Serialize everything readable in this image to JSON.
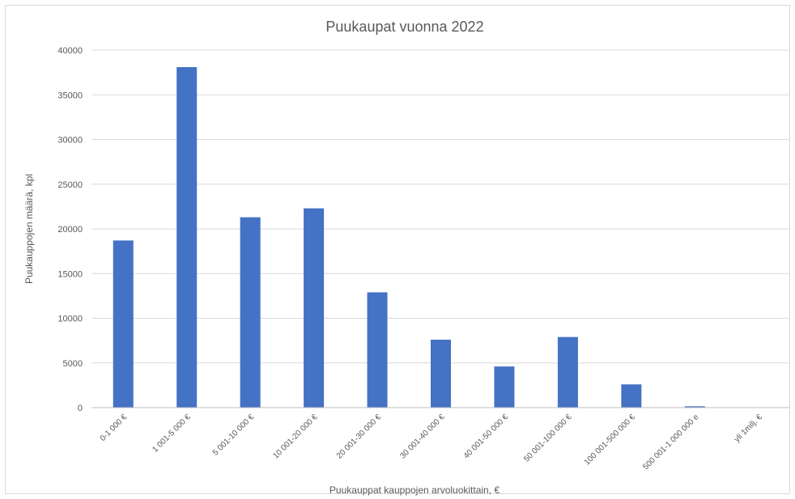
{
  "chart_data": {
    "type": "bar",
    "title": "Puukaupat vuonna 2022",
    "xlabel": "Puukauppat kauppojen arvoluokittain, €",
    "ylabel": "Puukauppojen määrä, kpl",
    "ylim": [
      0,
      40000
    ],
    "yticks": [
      0,
      5000,
      10000,
      15000,
      20000,
      25000,
      30000,
      35000,
      40000
    ],
    "grid": true,
    "bar_color": "#4472C4",
    "categories": [
      "0-1 000 €",
      "1 001-5 000 €",
      "5 001-10 000 €",
      "10 001-20 000 €",
      "20 001-30 000 €",
      "30 001-40 000 €",
      "40 001-50 000 €",
      "50 001-100 000 €",
      "100 001-500 000 €",
      "500 001-1 000 000 e",
      "yli 1milj. €"
    ],
    "values": [
      18700,
      38100,
      21300,
      22300,
      12900,
      7600,
      4600,
      7900,
      2600,
      150,
      0
    ]
  }
}
